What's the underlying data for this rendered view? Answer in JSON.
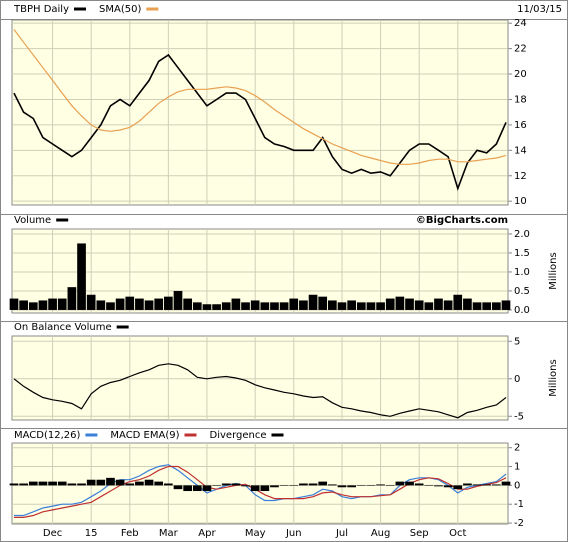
{
  "chart_data": [
    {
      "type": "line",
      "date": "11/03/15",
      "series": [
        {
          "name": "TBPH Daily",
          "color": "#000000",
          "values": [
            18.5,
            17,
            16.5,
            15,
            14.5,
            14,
            13.5,
            14,
            15,
            16,
            17.5,
            18,
            17.5,
            18.5,
            19.5,
            21,
            21.5,
            20.5,
            19.5,
            18.5,
            17.5,
            18,
            18.5,
            18.5,
            18,
            16.5,
            15,
            14.5,
            14.3,
            14,
            14,
            14,
            15,
            13.5,
            12.5,
            12.2,
            12.5,
            12.2,
            12.3,
            12,
            13,
            14,
            14.5,
            14.5,
            14,
            13.5,
            11,
            13,
            14,
            13.8,
            14.5,
            16.2
          ]
        },
        {
          "name": "SMA(50)",
          "color": "#e8a050",
          "values": [
            23.5,
            22.5,
            21.5,
            20.5,
            19.5,
            18.5,
            17.5,
            16.7,
            16,
            15.6,
            15.5,
            15.6,
            15.8,
            16.3,
            17,
            17.7,
            18.2,
            18.6,
            18.8,
            18.8,
            18.8,
            18.9,
            19,
            18.9,
            18.7,
            18.3,
            17.8,
            17.2,
            16.7,
            16.2,
            15.7,
            15.3,
            14.9,
            14.5,
            14.2,
            13.9,
            13.6,
            13.4,
            13.2,
            13,
            12.9,
            12.9,
            13,
            13.2,
            13.3,
            13.3,
            13.1,
            13.1,
            13.2,
            13.3,
            13.4,
            13.6
          ]
        }
      ],
      "ylim": [
        9.7,
        24.25
      ],
      "yticks": [
        10,
        12,
        14,
        16,
        18,
        20,
        22,
        24
      ],
      "grid": true
    },
    {
      "type": "bar",
      "credit": "©BigCharts.com",
      "y_label": "Millions",
      "series": [
        {
          "name": "Volume",
          "color": "#000000",
          "values": [
            0.3,
            0.25,
            0.2,
            0.25,
            0.3,
            0.3,
            0.6,
            1.75,
            0.4,
            0.25,
            0.2,
            0.3,
            0.35,
            0.3,
            0.25,
            0.3,
            0.35,
            0.5,
            0.3,
            0.2,
            0.15,
            0.15,
            0.2,
            0.3,
            0.2,
            0.25,
            0.2,
            0.2,
            0.2,
            0.3,
            0.25,
            0.4,
            0.35,
            0.25,
            0.2,
            0.25,
            0.2,
            0.2,
            0.2,
            0.3,
            0.35,
            0.3,
            0.25,
            0.2,
            0.3,
            0.25,
            0.4,
            0.3,
            0.2,
            0.2,
            0.2,
            0.25
          ]
        }
      ],
      "ylim": [
        -0.08,
        2.13
      ],
      "yticks": [
        {
          "value": 0,
          "label": "0.0"
        },
        0.5,
        {
          "value": 1,
          "label": "1.0"
        },
        1.5,
        {
          "value": 2,
          "label": "2.0"
        }
      ],
      "grid": true
    },
    {
      "type": "line",
      "y_label": "Millions",
      "series": [
        {
          "name": "On Balance Volume",
          "color": "#000000",
          "values": [
            0,
            -1,
            -1.8,
            -2.5,
            -2.8,
            -3,
            -3.3,
            -4,
            -2,
            -1,
            -0.5,
            -0.2,
            0.3,
            0.8,
            1.2,
            1.8,
            2,
            1.8,
            1.2,
            0.2,
            0,
            0.2,
            0.3,
            0.1,
            -0.2,
            -0.8,
            -1.2,
            -1.5,
            -1.8,
            -2,
            -2.3,
            -2.5,
            -2.4,
            -3.2,
            -3.8,
            -4,
            -4.3,
            -4.5,
            -4.8,
            -5,
            -4.6,
            -4.3,
            -4,
            -4.2,
            -4.4,
            -4.8,
            -5.2,
            -4.5,
            -4.2,
            -3.8,
            -3.5,
            -2.5
          ]
        }
      ],
      "ylim": [
        -5.5,
        5.7
      ],
      "yticks": [
        -5,
        0,
        5
      ],
      "grid": true
    },
    {
      "type": "line",
      "categories": [
        null,
        null,
        null,
        null,
        "Dec",
        null,
        null,
        null,
        "15",
        null,
        null,
        null,
        "Feb",
        null,
        null,
        null,
        "Mar",
        null,
        null,
        null,
        "Apr",
        null,
        null,
        null,
        null,
        "May",
        null,
        null,
        null,
        "Jun",
        null,
        null,
        null,
        null,
        "Jul",
        null,
        null,
        null,
        "Aug",
        null,
        null,
        null,
        "Sep",
        null,
        null,
        null,
        "Oct",
        null,
        null,
        null,
        null,
        null
      ],
      "series": [
        {
          "name": "MACD(12,26)",
          "color": "#3a7fd8",
          "values": [
            -1.6,
            -1.6,
            -1.4,
            -1.2,
            -1.1,
            -1,
            -1,
            -0.9,
            -0.6,
            -0.3,
            0.1,
            0.3,
            0.3,
            0.5,
            0.8,
            1,
            1.1,
            0.8,
            0.4,
            0,
            -0.4,
            -0.2,
            0,
            0.1,
            0,
            -0.5,
            -0.8,
            -0.8,
            -0.7,
            -0.7,
            -0.6,
            -0.5,
            -0.2,
            -0.3,
            -0.6,
            -0.7,
            -0.6,
            -0.6,
            -0.5,
            -0.5,
            0,
            0.3,
            0.4,
            0.4,
            0.3,
            0,
            -0.4,
            -0.1,
            0,
            0.1,
            0.2,
            0.6
          ]
        },
        {
          "name": "MACD EMA(9)",
          "color": "#c03030",
          "values": [
            -1.7,
            -1.7,
            -1.6,
            -1.4,
            -1.3,
            -1.2,
            -1.1,
            -1,
            -0.9,
            -0.6,
            -0.3,
            0,
            0.2,
            0.3,
            0.5,
            0.8,
            1,
            1,
            0.7,
            0.3,
            -0.1,
            -0.2,
            -0.1,
            0,
            0.05,
            -0.2,
            -0.5,
            -0.7,
            -0.7,
            -0.7,
            -0.7,
            -0.6,
            -0.4,
            -0.35,
            -0.5,
            -0.6,
            -0.6,
            -0.6,
            -0.55,
            -0.5,
            -0.2,
            0.1,
            0.3,
            0.4,
            0.35,
            0.1,
            -0.2,
            -0.2,
            -0.05,
            0.05,
            0.15,
            0.4
          ]
        },
        {
          "name": "Divergence",
          "color": "#000000",
          "type": "bar",
          "values": [
            0.1,
            0.1,
            0.2,
            0.2,
            0.2,
            0.2,
            0.1,
            0.1,
            0.3,
            0.3,
            0.4,
            0.3,
            0.1,
            0.2,
            0.3,
            0.2,
            0.1,
            -0.2,
            -0.3,
            -0.3,
            -0.3,
            0,
            0.1,
            0.1,
            -0.05,
            -0.3,
            -0.3,
            -0.1,
            0,
            0,
            0.1,
            0.1,
            0.2,
            0.05,
            -0.1,
            -0.1,
            0,
            0,
            0.05,
            0,
            0.2,
            0.2,
            0.1,
            0,
            -0.05,
            -0.1,
            -0.2,
            0.1,
            0.05,
            0.05,
            0.05,
            0.2
          ]
        }
      ],
      "ylim": [
        -2.05,
        2.25
      ],
      "yticks": [
        -2,
        -1,
        0,
        1,
        2
      ],
      "grid": true
    }
  ]
}
